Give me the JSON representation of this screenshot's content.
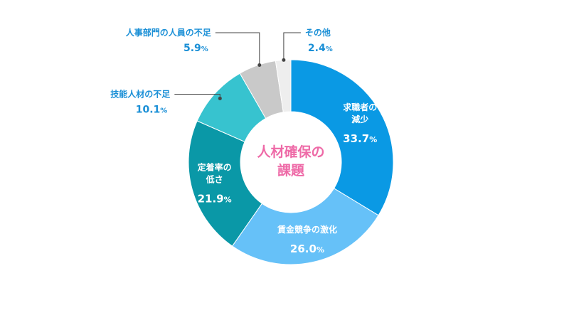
{
  "chart_data": {
    "type": "pie",
    "title": "人材確保の課題",
    "title_lines": [
      "人材確保の",
      "課題"
    ],
    "unit": "%",
    "slices": [
      {
        "name": "求職者の減少",
        "name_lines": [
          "求職者の",
          "減少"
        ],
        "value": 33.7,
        "value_label": "33.7",
        "color": "#0a99e4",
        "label_color": "#ffffff",
        "label_position": "inside"
      },
      {
        "name": "賃金競争の激化",
        "name_lines": [
          "賃金競争の激化"
        ],
        "value": 26.0,
        "value_label": "26.0",
        "color": "#66c1f8",
        "label_color": "#ffffff",
        "label_position": "inside"
      },
      {
        "name": "定着率の低さ",
        "name_lines": [
          "定着率の",
          "低さ"
        ],
        "value": 21.9,
        "value_label": "21.9",
        "color": "#0a98a7",
        "label_color": "#ffffff",
        "label_position": "inside"
      },
      {
        "name": "技能人材の不足",
        "name_lines": [
          "技能人材の不足"
        ],
        "value": 10.1,
        "value_label": "10.1",
        "color": "#37c3cf",
        "label_color": "#1a8fd6",
        "label_position": "outside-left"
      },
      {
        "name": "人事部門の人員の不足",
        "name_lines": [
          "人事部門の人員の不足"
        ],
        "value": 5.9,
        "value_label": "5.9",
        "color": "#c9c9c9",
        "label_color": "#1a8fd6",
        "label_position": "outside-top"
      },
      {
        "name": "その他",
        "name_lines": [
          "その他"
        ],
        "value": 2.4,
        "value_label": "2.4",
        "color": "#eeeeee",
        "label_color": "#1a8fd6",
        "label_position": "outside-top-right"
      }
    ],
    "colors": {
      "title": "#ee6aa7",
      "leader_line": "#444444",
      "outside_text": "#1a8fd6"
    }
  }
}
